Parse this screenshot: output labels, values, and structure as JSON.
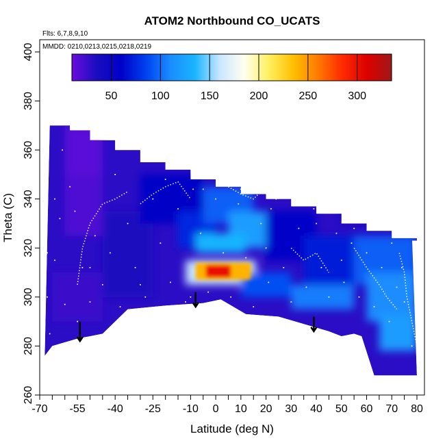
{
  "chart_data": {
    "type": "heatmap",
    "title": "ATOM2 Northbound CO_UCATS",
    "subtitle_flights": "Flts: 6,7,8,9,10",
    "subtitle_dates": "MMDD: 0210,0213,0215,0218,0219",
    "xlabel": "Latitude (deg N)",
    "ylabel": "Theta (C)",
    "xlim": [
      -70,
      83
    ],
    "ylim": [
      260,
      405
    ],
    "x_tick_labels": [
      "-70",
      "-55",
      "-40",
      "-25",
      "-10",
      "0",
      "10",
      "20",
      "30",
      "40",
      "50",
      "60",
      "70",
      "80"
    ],
    "x_tick_values": [
      -70,
      -55,
      -40,
      -25,
      -10,
      0,
      10,
      20,
      30,
      40,
      50,
      60,
      70,
      80
    ],
    "x_minor_ticks": [
      -65,
      -60,
      -50,
      -45,
      -35,
      -30,
      -20,
      -15,
      -5,
      5,
      15,
      25,
      35,
      45,
      55,
      65,
      75
    ],
    "y_ticks": [
      260,
      280,
      300,
      320,
      340,
      360,
      380,
      400
    ],
    "colorbar": {
      "ticks": [
        50,
        100,
        150,
        200,
        250,
        300
      ],
      "range": [
        10,
        335
      ],
      "colors": [
        "#6a0dde",
        "#1a0dbf",
        "#0000c8",
        "#0040f0",
        "#1a8cff",
        "#19b4ff",
        "#c8e6ff",
        "#fffff0",
        "#fff060",
        "#ffc000",
        "#ff7a00",
        "#ff2a00",
        "#dd0000",
        "#a01818"
      ]
    },
    "domain_upper": [
      [
        -66,
        370
      ],
      [
        -58,
        368
      ],
      [
        -50,
        364
      ],
      [
        -40,
        360
      ],
      [
        -30,
        355
      ],
      [
        -20,
        352
      ],
      [
        -10,
        348
      ],
      [
        0,
        345
      ],
      [
        10,
        342
      ],
      [
        20,
        340
      ],
      [
        30,
        337
      ],
      [
        40,
        334
      ],
      [
        50,
        330
      ],
      [
        60,
        327
      ],
      [
        70,
        324
      ],
      [
        80,
        323
      ]
    ],
    "domain_lower": [
      [
        -68,
        276
      ],
      [
        -65,
        280
      ],
      [
        -55,
        283
      ],
      [
        -45,
        285
      ],
      [
        -35,
        295
      ],
      [
        -20,
        296.5
      ],
      [
        -5,
        297.5
      ],
      [
        2,
        299
      ],
      [
        12,
        293
      ],
      [
        25,
        292
      ],
      [
        35,
        289
      ],
      [
        45,
        286
      ],
      [
        50,
        284
      ],
      [
        55,
        285
      ],
      [
        58,
        284
      ],
      [
        63,
        268
      ],
      [
        80,
        268
      ]
    ],
    "cells": [
      {
        "x": -65,
        "y": 290,
        "w": 20,
        "h": 20,
        "v": 25
      },
      {
        "x": -60,
        "y": 325,
        "w": 15,
        "h": 30,
        "v": 18
      },
      {
        "x": -60,
        "y": 350,
        "w": 15,
        "h": 20,
        "v": 15
      },
      {
        "x": -45,
        "y": 300,
        "w": 20,
        "h": 35,
        "v": 35
      },
      {
        "x": -30,
        "y": 330,
        "w": 25,
        "h": 20,
        "v": 55
      },
      {
        "x": -15,
        "y": 320,
        "w": 15,
        "h": 15,
        "v": 75
      },
      {
        "x": -5,
        "y": 330,
        "w": 20,
        "h": 15,
        "v": 95
      },
      {
        "x": 5,
        "y": 320,
        "w": 15,
        "h": 15,
        "v": 120
      },
      {
        "x": -8,
        "y": 318,
        "w": 20,
        "h": 8,
        "v": 135
      },
      {
        "x": -12,
        "y": 305,
        "w": 28,
        "h": 10,
        "v": 160
      },
      {
        "x": -8,
        "y": 307,
        "w": 22,
        "h": 7,
        "v": 240
      },
      {
        "x": -4,
        "y": 308,
        "w": 10,
        "h": 5,
        "v": 300
      },
      {
        "x": 20,
        "y": 315,
        "w": 20,
        "h": 20,
        "v": 60
      },
      {
        "x": 35,
        "y": 305,
        "w": 25,
        "h": 20,
        "v": 70
      },
      {
        "x": 10,
        "y": 300,
        "w": 20,
        "h": 10,
        "v": 90
      },
      {
        "x": 30,
        "y": 295,
        "w": 25,
        "h": 10,
        "v": 105
      },
      {
        "x": 55,
        "y": 305,
        "w": 25,
        "h": 20,
        "v": 95
      },
      {
        "x": 60,
        "y": 290,
        "w": 20,
        "h": 20,
        "v": 110
      },
      {
        "x": 65,
        "y": 278,
        "w": 15,
        "h": 15,
        "v": 120
      },
      {
        "x": 50,
        "y": 330,
        "w": 30,
        "h": 12,
        "v": 40
      }
    ],
    "profiles": [
      [
        [
          -55,
          305
        ],
        [
          -53,
          320
        ],
        [
          -50,
          330
        ],
        [
          -45,
          338
        ],
        [
          -40,
          340
        ],
        [
          -35,
          343
        ]
      ],
      [
        [
          -30,
          338
        ],
        [
          -25,
          342
        ],
        [
          -20,
          345
        ],
        [
          -15,
          347
        ],
        [
          -10,
          340
        ]
      ],
      [
        [
          5,
          345
        ],
        [
          10,
          342
        ],
        [
          15,
          340
        ],
        [
          20,
          345
        ],
        [
          25,
          340
        ]
      ],
      [
        [
          30,
          320
        ],
        [
          35,
          315
        ],
        [
          40,
          318
        ],
        [
          45,
          310
        ]
      ],
      [
        [
          55,
          320
        ],
        [
          60,
          312
        ],
        [
          65,
          305
        ],
        [
          68,
          300
        ],
        [
          72,
          295
        ]
      ],
      [
        [
          73,
          318
        ],
        [
          75,
          310
        ],
        [
          76,
          300
        ],
        [
          78,
          290
        ],
        [
          80,
          280
        ]
      ]
    ],
    "scatter_points": [
      [
        -67,
        300
      ],
      [
        -66,
        285
      ],
      [
        -64,
        315
      ],
      [
        -62,
        332
      ],
      [
        -60,
        297
      ],
      [
        -58,
        345
      ],
      [
        -55,
        290
      ],
      [
        -53,
        312
      ],
      [
        -50,
        298
      ],
      [
        -48,
        325
      ],
      [
        -45,
        305
      ],
      [
        -42,
        318
      ],
      [
        -38,
        296
      ],
      [
        -35,
        330
      ],
      [
        -32,
        312
      ],
      [
        -28,
        300
      ],
      [
        -25,
        340
      ],
      [
        -22,
        322
      ],
      [
        -18,
        306
      ],
      [
        -15,
        336
      ],
      [
        -12,
        298
      ],
      [
        -9,
        344
      ],
      [
        -6,
        326
      ],
      [
        -3,
        302
      ],
      [
        0,
        340
      ],
      [
        3,
        318
      ],
      [
        6,
        300
      ],
      [
        9,
        338
      ],
      [
        12,
        316
      ],
      [
        15,
        296
      ],
      [
        18,
        330
      ],
      [
        21,
        306
      ],
      [
        24,
        340
      ],
      [
        27,
        312
      ],
      [
        30,
        298
      ],
      [
        33,
        328
      ],
      [
        36,
        304
      ],
      [
        39,
        336
      ],
      [
        42,
        312
      ],
      [
        45,
        300
      ],
      [
        48,
        326
      ],
      [
        51,
        306
      ],
      [
        54,
        322
      ],
      [
        57,
        300
      ],
      [
        60,
        318
      ],
      [
        63,
        296
      ],
      [
        66,
        312
      ],
      [
        69,
        290
      ],
      [
        72,
        304
      ],
      [
        75,
        298
      ],
      [
        78,
        280
      ],
      [
        80,
        292
      ],
      [
        -67,
        318
      ],
      [
        -64,
        340
      ],
      [
        -61,
        360
      ],
      [
        -56,
        335
      ],
      [
        -40,
        350
      ],
      [
        -20,
        348
      ],
      [
        -5,
        344
      ],
      [
        10,
        344
      ],
      [
        22,
        336
      ],
      [
        40,
        330
      ],
      [
        55,
        328
      ],
      [
        70,
        322
      ],
      [
        -50,
        312
      ],
      [
        -30,
        305
      ],
      [
        -10,
        300
      ],
      [
        20,
        320
      ],
      [
        50,
        315
      ],
      [
        74,
        312
      ]
    ],
    "arrows": [
      {
        "x": -54,
        "y_top": 290,
        "y_bottom": 282
      },
      {
        "x": -8,
        "y_top": 302,
        "y_bottom": 296
      },
      {
        "x": 39,
        "y_top": 292,
        "y_bottom": 286
      }
    ]
  }
}
